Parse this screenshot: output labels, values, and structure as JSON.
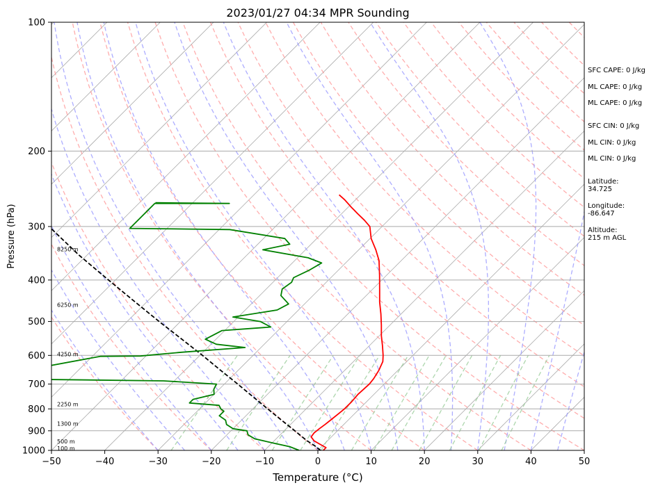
{
  "chart_data": {
    "type": "skew-t",
    "title": "2023/01/27 04:34 MPR Sounding",
    "xlabel": "Temperature (°C)",
    "ylabel": "Pressure (hPa)",
    "xlim": [
      -50,
      50
    ],
    "ylim": [
      1000,
      100
    ],
    "y_scale": "log",
    "x_ticks": [
      -50,
      -40,
      -30,
      -20,
      -10,
      0,
      10,
      20,
      30,
      40,
      50
    ],
    "x_tick_labels": [
      "−50",
      "−40",
      "−30",
      "−20",
      "−10",
      "0",
      "10",
      "20",
      "30",
      "40",
      "50"
    ],
    "y_ticks": [
      1000,
      900,
      800,
      700,
      600,
      500,
      400,
      300,
      200,
      100
    ],
    "y_tick_labels": [
      "1000",
      "900",
      "800",
      "700",
      "600",
      "500",
      "400",
      "300",
      "200",
      "100"
    ],
    "grid": true,
    "temperature_profile": {
      "color": "#ff0000",
      "points": [
        [
          1000,
          1.0
        ],
        [
          985,
          1.0
        ],
        [
          970,
          -0.5
        ],
        [
          950,
          -2.5
        ],
        [
          930,
          -3.8
        ],
        [
          910,
          -4.0
        ],
        [
          890,
          -3.8
        ],
        [
          870,
          -3.5
        ],
        [
          850,
          -3.3
        ],
        [
          820,
          -3.0
        ],
        [
          800,
          -2.8
        ],
        [
          770,
          -2.8
        ],
        [
          740,
          -3.0
        ],
        [
          700,
          -2.8
        ],
        [
          680,
          -3.0
        ],
        [
          650,
          -3.6
        ],
        [
          620,
          -4.5
        ],
        [
          600,
          -5.6
        ],
        [
          570,
          -7.5
        ],
        [
          540,
          -9.6
        ],
        [
          510,
          -11.6
        ],
        [
          480,
          -13.8
        ],
        [
          450,
          -16.3
        ],
        [
          420,
          -18.7
        ],
        [
          390,
          -21.3
        ],
        [
          360,
          -24.2
        ],
        [
          340,
          -26.8
        ],
        [
          320,
          -29.8
        ],
        [
          300,
          -32.3
        ],
        [
          290,
          -34.5
        ],
        [
          280,
          -37.0
        ],
        [
          270,
          -39.5
        ],
        [
          260,
          -42.0
        ],
        [
          253,
          -44.0
        ]
      ]
    },
    "dewpoint_profile": {
      "color": "#008000",
      "points": [
        [
          1000,
          -3.5
        ],
        [
          980,
          -6.0
        ],
        [
          960,
          -10.0
        ],
        [
          940,
          -14.0
        ],
        [
          920,
          -16.0
        ],
        [
          900,
          -17.0
        ],
        [
          890,
          -20.0
        ],
        [
          870,
          -22.0
        ],
        [
          850,
          -23.0
        ],
        [
          830,
          -25.0
        ],
        [
          810,
          -25.0
        ],
        [
          800,
          -26.0
        ],
        [
          785,
          -27.0
        ],
        [
          775,
          -33.0
        ],
        [
          760,
          -33.0
        ],
        [
          740,
          -30.0
        ],
        [
          720,
          -31.0
        ],
        [
          700,
          -31.5
        ],
        [
          688,
          -42.0
        ],
        [
          680,
          -77.0
        ],
        [
          603,
          -58.5
        ],
        [
          602,
          -51.0
        ],
        [
          590,
          -44.0
        ],
        [
          575,
          -33.0
        ],
        [
          565,
          -39.0
        ],
        [
          550,
          -42.0
        ],
        [
          525,
          -40.5
        ],
        [
          515,
          -32.0
        ],
        [
          500,
          -35.0
        ],
        [
          488,
          -41.0
        ],
        [
          470,
          -34.0
        ],
        [
          455,
          -33.0
        ],
        [
          435,
          -36.0
        ],
        [
          420,
          -37.0
        ],
        [
          405,
          -36.5
        ],
        [
          395,
          -37.0
        ],
        [
          380,
          -35.5
        ],
        [
          365,
          -34.5
        ],
        [
          355,
          -38.0
        ],
        [
          340,
          -48.0
        ],
        [
          330,
          -44.0
        ],
        [
          320,
          -46.0
        ],
        [
          305,
          -58.0
        ],
        [
          303,
          -77.0
        ],
        [
          265,
          -77.0
        ],
        [
          265,
          -63.0
        ],
        [
          264,
          -77.0
        ]
      ]
    },
    "parcel_profile": {
      "color": "#000000",
      "style": "dashed",
      "points": [
        [
          1000,
          0.5
        ],
        [
          975,
          -1.5
        ],
        [
          950,
          -3.8
        ],
        [
          925,
          -5.9
        ],
        [
          900,
          -8.0
        ],
        [
          850,
          -12.5
        ],
        [
          800,
          -17.2
        ],
        [
          750,
          -22.2
        ],
        [
          700,
          -27.5
        ],
        [
          650,
          -33.3
        ],
        [
          600,
          -39.5
        ],
        [
          550,
          -46.4
        ],
        [
          500,
          -54.0
        ],
        [
          450,
          -62.2
        ],
        [
          400,
          -71.3
        ],
        [
          350,
          -81.5
        ],
        [
          300,
          -92.5
        ],
        [
          290,
          -95.0
        ]
      ]
    },
    "height_labels": [
      {
        "pressure": 988,
        "text": "100 m"
      },
      {
        "pressure": 953,
        "text": "500 m"
      },
      {
        "pressure": 866,
        "text": "1300 m"
      },
      {
        "pressure": 780,
        "text": "2250 m"
      },
      {
        "pressure": 596,
        "text": "4250 m"
      },
      {
        "pressure": 457,
        "text": "6250 m"
      },
      {
        "pressure": 339,
        "text": "8250 m"
      }
    ],
    "background_lines": {
      "isotherm_color": "#a9a9a9",
      "dry_adiabat_color": "#ff9999",
      "moist_adiabat_color": "#9999ff",
      "mixing_ratio_color": "#99cc99"
    },
    "side_text": [
      {
        "lines": [
          "SFC CAPE: 0 J/kg"
        ]
      },
      {
        "lines": [
          "ML CAPE: 0 J/kg"
        ]
      },
      {
        "lines": [
          "ML CAPE: 0 J/kg"
        ]
      },
      {
        "lines": [
          "SFC CIN: 0 J/kg"
        ]
      },
      {
        "lines": [
          "ML CIN: 0 J/kg"
        ]
      },
      {
        "lines": [
          "ML CIN: 0 J/kg"
        ]
      },
      {
        "lines": [
          "Latitude:",
          "34.725"
        ]
      },
      {
        "lines": [
          "Longitude:",
          "-86.647"
        ]
      },
      {
        "lines": [
          "Altitude:",
          "215 m AGL"
        ]
      }
    ]
  }
}
